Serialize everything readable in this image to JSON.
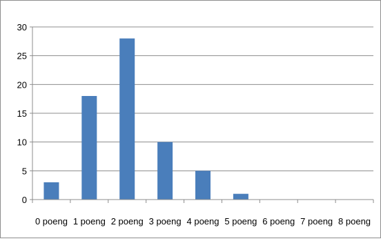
{
  "chart_data": {
    "type": "bar",
    "categories": [
      "0 poeng",
      "1 poeng",
      "2 poeng",
      "3 poeng",
      "4 poeng",
      "5 poeng",
      "6 poeng",
      "7 poeng",
      "8 poeng"
    ],
    "values": [
      3,
      18,
      28,
      10,
      5,
      1,
      0,
      0,
      0
    ],
    "ylim": [
      0,
      30
    ],
    "yticks": [
      0,
      5,
      10,
      15,
      20,
      25,
      30
    ],
    "grid": true,
    "legend": "none",
    "bar_color": "#4a7ebb",
    "grid_color": "#8c8c8c"
  }
}
